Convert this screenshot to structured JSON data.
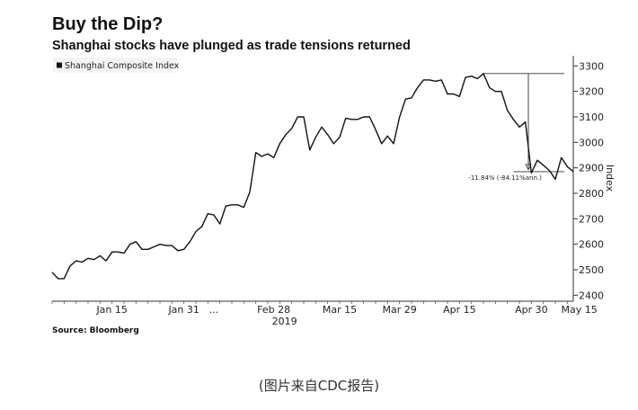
{
  "chart_data": {
    "type": "line",
    "title": "Buy the Dip?",
    "subtitle": "Shanghai stocks have plunged as trade tensions returned",
    "legend": "Shanghai Composite Index",
    "ylabel": "Index",
    "ylim": [
      2380,
      3340
    ],
    "yticks": [
      2400,
      2500,
      2600,
      2700,
      2800,
      2900,
      3000,
      3100,
      3200,
      3300
    ],
    "xlabels": [
      "Jan 15",
      "Jan 31",
      "...",
      "Feb 28",
      "Mar 15",
      "Mar 29",
      "Apr 15",
      "Apr 30",
      "May 15"
    ],
    "xtick_index": [
      10,
      22,
      27,
      37,
      48,
      58,
      68,
      80,
      88
    ],
    "year_label": "2019",
    "values": [
      2490,
      2465,
      2465,
      2515,
      2535,
      2530,
      2545,
      2540,
      2555,
      2535,
      2570,
      2570,
      2565,
      2600,
      2610,
      2580,
      2580,
      2590,
      2600,
      2595,
      2595,
      2575,
      2580,
      2610,
      2650,
      2670,
      2720,
      2715,
      2680,
      2750,
      2755,
      2755,
      2745,
      2805,
      2960,
      2945,
      2955,
      2940,
      2995,
      3030,
      3055,
      3100,
      3100,
      2970,
      3020,
      3060,
      3030,
      2995,
      3020,
      3095,
      3090,
      3090,
      3100,
      3100,
      3050,
      2995,
      3025,
      2995,
      3100,
      3170,
      3175,
      3215,
      3245,
      3245,
      3240,
      3245,
      3190,
      3190,
      3180,
      3255,
      3260,
      3250,
      3270,
      3215,
      3200,
      3200,
      3125,
      3090,
      3060,
      3080,
      2880,
      2930,
      2910,
      2890,
      2855,
      2940,
      2905,
      2885
    ],
    "annotation": {
      "peak": 3270,
      "trough": 2885,
      "start_index": 72,
      "end_index": 88,
      "label": "-11.84% (-84.11%ann.)"
    }
  },
  "source": "Source: Bloomberg",
  "caption": "(图片来自CDC报告)"
}
